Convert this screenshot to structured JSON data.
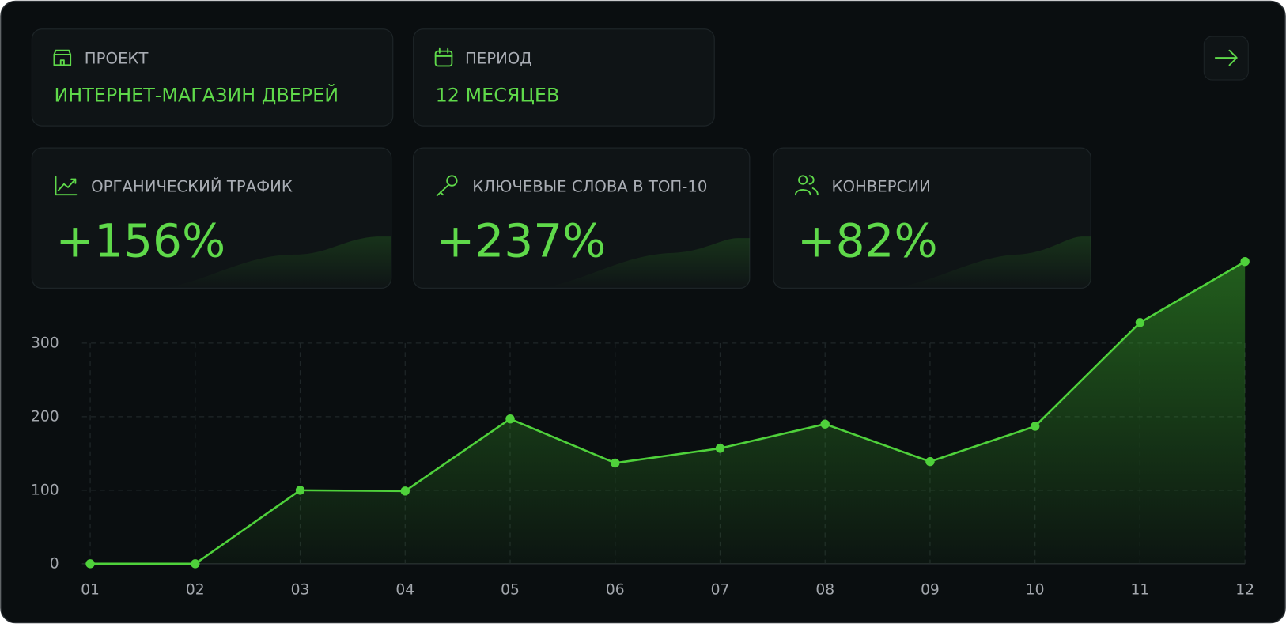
{
  "project": {
    "label": "ПРОЕКТ",
    "value": "ИНТЕРНЕТ-МАГАЗИН ДВЕРЕЙ"
  },
  "period": {
    "label": "ПЕРИОД",
    "value": "12 МЕСЯЦЕВ"
  },
  "metrics": [
    {
      "label": "ОРГАНИЧЕСКИЙ ТРАФИК",
      "value": "+156%"
    },
    {
      "label": "КЛЮЧЕВЫЕ СЛОВА В ТОП-10",
      "value": "+237%"
    },
    {
      "label": "КОНВЕРСИИ",
      "value": "+82%"
    }
  ],
  "chart_data": {
    "type": "area",
    "categories": [
      "01",
      "02",
      "03",
      "04",
      "05",
      "06",
      "07",
      "08",
      "09",
      "10",
      "11",
      "12"
    ],
    "values": [
      0,
      0,
      100,
      99,
      197,
      137,
      157,
      190,
      139,
      187,
      328,
      411
    ],
    "color": "#4fd13b",
    "ylim": [
      0,
      420
    ],
    "yticks": [
      0,
      100,
      200,
      300
    ],
    "grid": true
  }
}
